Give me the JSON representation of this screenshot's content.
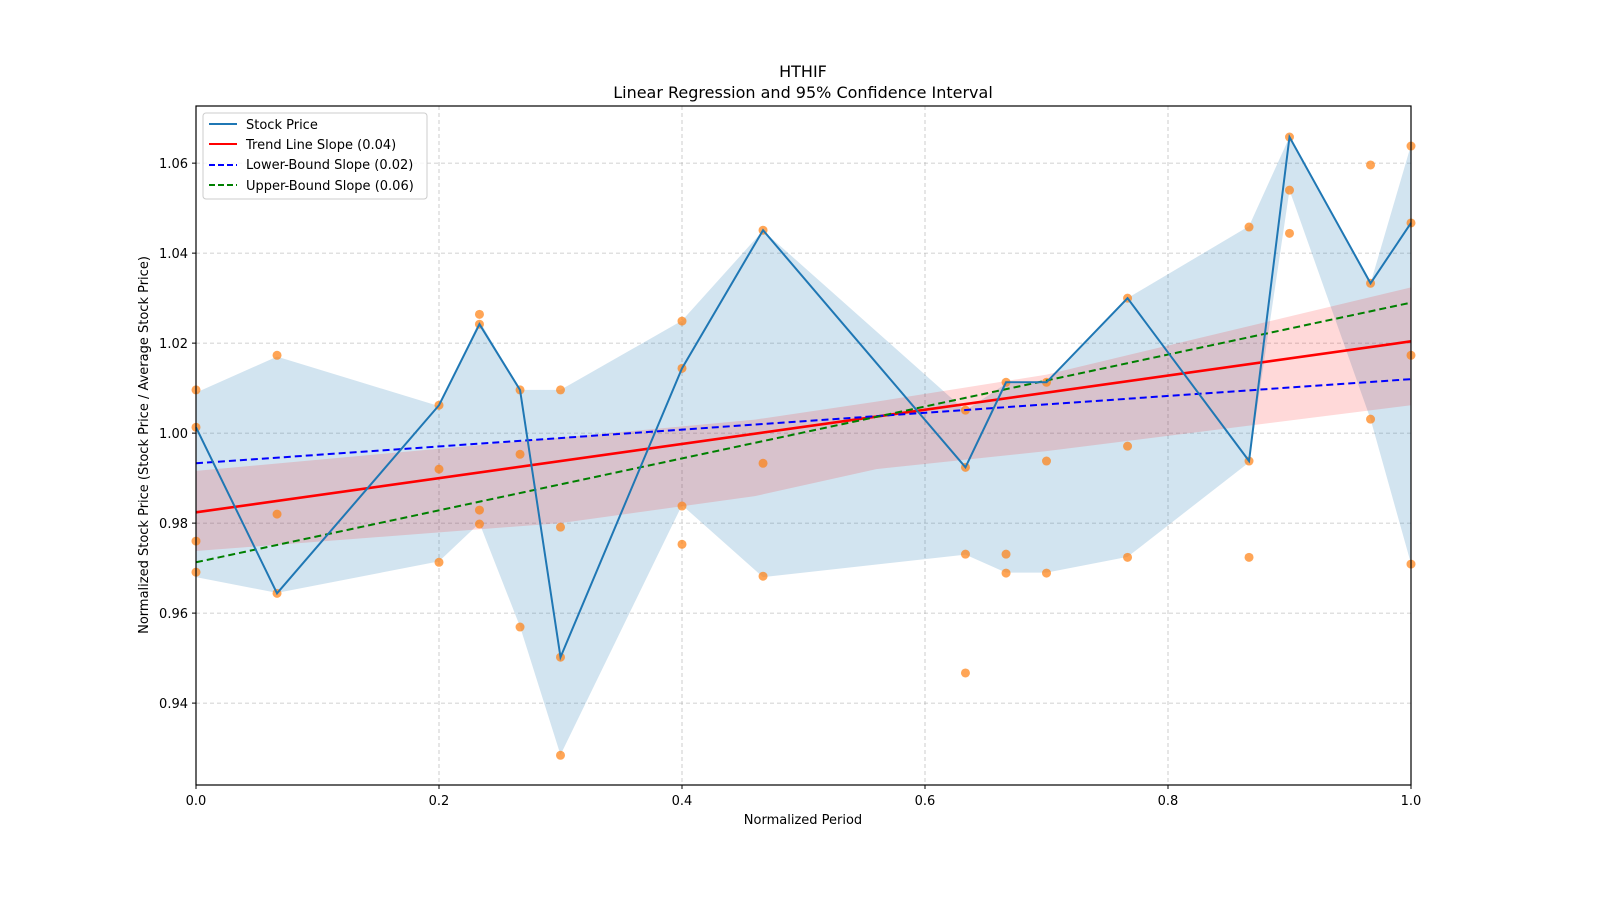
{
  "chart_data": {
    "type": "line",
    "title": "HTHIF",
    "subtitle": "Linear Regression and 95% Confidence Interval",
    "xlabel": "Normalized Period",
    "ylabel": "Normalized Stock Price (Stock Price / Average Stock Price)",
    "xlim": [
      0.0,
      1.0
    ],
    "ylim": [
      0.9218,
      1.0727
    ],
    "xticks": [
      0.0,
      0.2,
      0.4,
      0.6,
      0.8,
      1.0
    ],
    "xtick_labels": [
      "0.0",
      "0.2",
      "0.4",
      "0.6",
      "0.8",
      "1.0"
    ],
    "yticks": [
      0.94,
      0.96,
      0.98,
      1.0,
      1.02,
      1.04,
      1.06
    ],
    "ytick_labels": [
      "0.94",
      "0.96",
      "0.98",
      "1.00",
      "1.02",
      "1.04",
      "1.06"
    ],
    "grid": true,
    "legend_position": "top-left",
    "legend": [
      {
        "label": "Stock Price",
        "color": "#1f77b4",
        "style": "solid"
      },
      {
        "label": "Trend Line Slope (0.04)",
        "color": "#ff0000",
        "style": "solid"
      },
      {
        "label": "Lower-Bound Slope (0.02)",
        "color": "#0000ff",
        "style": "dashed"
      },
      {
        "label": "Upper-Bound Slope (0.06)",
        "color": "#008000",
        "style": "dashed"
      }
    ],
    "stock_price": {
      "x": [
        0.0,
        0.0667,
        0.2,
        0.2333,
        0.2667,
        0.3,
        0.4,
        0.4667,
        0.6333,
        0.6667,
        0.7,
        0.7667,
        0.8667,
        0.9,
        0.9667,
        1.0
      ],
      "y": [
        1.0013,
        0.9644,
        1.0062,
        1.0242,
        1.0096,
        0.9502,
        1.0144,
        1.0451,
        0.9924,
        1.0113,
        1.0113,
        1.03,
        0.9938,
        1.0658,
        1.0333,
        1.0467
      ]
    },
    "stock_price_band": {
      "x": [
        0.0,
        0.0667,
        0.2,
        0.2333,
        0.2667,
        0.3,
        0.4,
        0.4667,
        0.6333,
        0.6667,
        0.7,
        0.7667,
        0.8667,
        0.9,
        0.9667,
        1.0
      ],
      "upper": [
        1.009,
        1.017,
        1.006,
        1.025,
        1.0096,
        1.0096,
        1.025,
        1.045,
        1.005,
        1.011,
        1.011,
        1.03,
        1.046,
        1.0658,
        1.0333,
        1.064
      ],
      "lower": [
        0.968,
        0.9645,
        0.9715,
        0.98,
        0.957,
        0.9285,
        0.984,
        0.968,
        0.973,
        0.969,
        0.969,
        0.9725,
        0.9935,
        1.054,
        1.0031,
        0.971
      ]
    },
    "scatter": {
      "x": [
        0.0,
        0.0,
        0.0,
        0.0,
        0.0667,
        0.0667,
        0.0667,
        0.2,
        0.2,
        0.2,
        0.2333,
        0.2333,
        0.2333,
        0.2333,
        0.2667,
        0.2667,
        0.2667,
        0.3,
        0.3,
        0.3,
        0.3,
        0.4,
        0.4,
        0.4,
        0.4,
        0.4667,
        0.4667,
        0.4667,
        0.6333,
        0.6333,
        0.6333,
        0.6333,
        0.6667,
        0.6667,
        0.6667,
        0.7,
        0.7,
        0.7,
        0.7667,
        0.7667,
        0.7667,
        0.8667,
        0.8667,
        0.8667,
        0.9,
        0.9,
        0.9,
        0.9667,
        0.9667,
        0.9667,
        1.0,
        1.0,
        1.0,
        1.0
      ],
      "y": [
        1.0096,
        1.0013,
        0.976,
        0.9691,
        1.0173,
        0.982,
        0.9644,
        1.0062,
        0.992,
        0.9713,
        1.0264,
        1.0242,
        0.9829,
        0.9798,
        1.0096,
        0.9953,
        0.9569,
        1.0096,
        0.9791,
        0.9502,
        0.9284,
        1.0249,
        1.0144,
        0.9838,
        0.9753,
        1.0451,
        0.9933,
        0.9682,
        1.0051,
        0.9924,
        0.9731,
        0.9467,
        1.0113,
        0.9731,
        0.9689,
        1.0113,
        0.9938,
        0.9689,
        1.03,
        0.9971,
        0.9724,
        1.0458,
        0.9938,
        0.9724,
        1.0658,
        1.054,
        1.0444,
        1.0596,
        1.0333,
        1.0031,
        1.0638,
        1.0467,
        1.0173,
        0.9709
      ],
      "color": "#ff7f0e"
    },
    "trend_line": {
      "x": [
        0.0,
        1.0
      ],
      "y": [
        0.9824,
        1.0204
      ],
      "slope": 0.04
    },
    "lower_bound_line": {
      "x": [
        0.0,
        1.0
      ],
      "y": [
        0.9933,
        1.012
      ],
      "slope": 0.02
    },
    "upper_bound_line": {
      "x": [
        0.0,
        1.0
      ],
      "y": [
        0.9713,
        1.029
      ],
      "slope": 0.06
    },
    "confidence_band": {
      "x": [
        0.0,
        0.3,
        0.46,
        0.56,
        0.7,
        1.0
      ],
      "upper": [
        0.9916,
        0.999,
        1.003,
        1.007,
        1.013,
        1.0324
      ],
      "lower": [
        0.9738,
        0.98,
        0.986,
        0.992,
        0.996,
        1.0062
      ]
    },
    "colors": {
      "stock": "#1f77b4",
      "stock_band": "#1f77b4",
      "scatter": "#ff7f0e",
      "trend": "#ff0000",
      "trend_band": "#ff0000",
      "lower": "#0000ff",
      "upper": "#008000",
      "grid": "#b0b0b0"
    }
  }
}
